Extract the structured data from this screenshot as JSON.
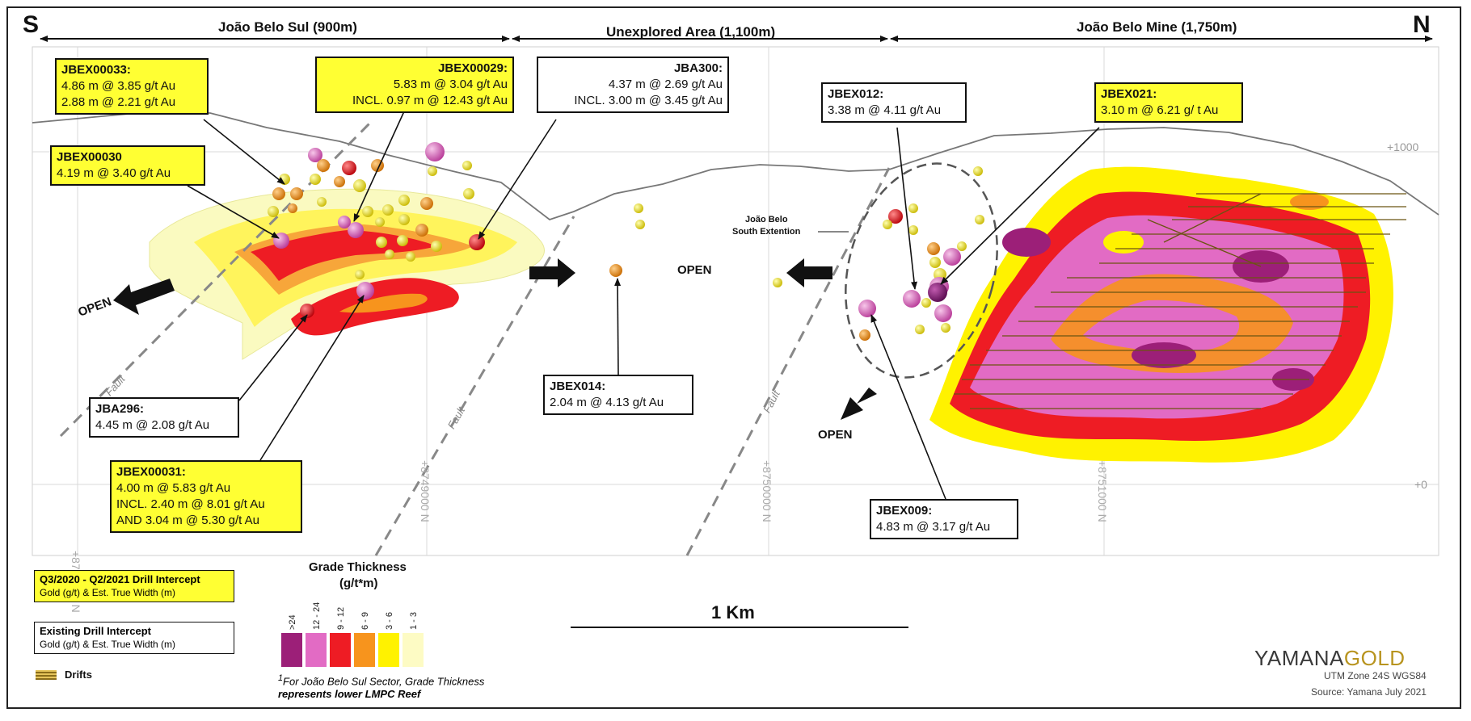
{
  "header": {
    "south": "S",
    "north": "N",
    "sectors": [
      {
        "label": "João Belo Sul (900m)"
      },
      {
        "label": "Unexplored Area (1,100m)"
      },
      {
        "label": "João Belo Mine (1,750m)"
      }
    ]
  },
  "elevations": [
    "+1000",
    "+0"
  ],
  "northings": [
    "+8748000 N",
    "+8749000 N",
    "+8750000 N",
    "+8751000 N"
  ],
  "map_labels": {
    "open": "OPEN",
    "fault": "Fault",
    "extension": "João Belo\nSouth Extention",
    "extension_line1": "João Belo",
    "extension_line2": "South Extention"
  },
  "callouts": {
    "jbex00033": {
      "title": "JBEX00033:",
      "lines": [
        "4.86 m @ 3.85 g/t Au",
        "2.88 m @ 2.21 g/t Au"
      ]
    },
    "jbex00029": {
      "title": "JBEX00029:",
      "lines": [
        "5.83 m @ 3.04 g/t Au",
        "INCL. 0.97 m @ 12.43 g/t Au"
      ]
    },
    "jba300": {
      "title": "JBA300:",
      "lines": [
        "4.37 m @ 2.69 g/t Au",
        "INCL. 3.00 m @ 3.45 g/t Au"
      ]
    },
    "jbex012": {
      "title": "JBEX012:",
      "lines": [
        "3.38 m @ 4.11 g/t Au"
      ]
    },
    "jbex021": {
      "title": "JBEX021:",
      "lines": [
        "3.10 m @ 6.21 g/ t Au"
      ]
    },
    "jbex00030": {
      "title": "JBEX00030",
      "lines": [
        "4.19 m @ 3.40 g/t Au"
      ]
    },
    "jba296": {
      "title": "JBA296:",
      "lines": [
        "4.45 m @ 2.08 g/t Au"
      ]
    },
    "jbex014": {
      "title": "JBEX014:",
      "lines": [
        "2.04 m @ 4.13 g/t Au"
      ]
    },
    "jbex00031": {
      "title": "JBEX00031:",
      "lines": [
        "4.00 m @ 5.83 g/t Au",
        "INCL. 2.40 m @ 8.01 g/t Au",
        "AND 3.04 m @ 5.30 g/t Au"
      ]
    },
    "jbex009": {
      "title": "JBEX009:",
      "lines": [
        "4.83 m @ 3.17 g/t Au"
      ]
    }
  },
  "legend": {
    "new_title": "Q3/2020 - Q2/2021 Drill Intercept",
    "new_sub": "Gold (g/t) & Est. True Width (m)",
    "old_title": "Existing Drill Intercept",
    "old_sub": "Gold (g/t) & Est. True Width (m)",
    "drifts": "Drifts",
    "grade_title": "Grade Thickness",
    "grade_unit": "(g/t*m)",
    "grades": [
      {
        "label": ">24",
        "color": "#9c1f78"
      },
      {
        "label": "12 - 24",
        "color": "#e26bc4"
      },
      {
        "label": "9 - 12",
        "color": "#ee1c24"
      },
      {
        "label": "6 - 9",
        "color": "#f7941d"
      },
      {
        "label": "3 - 6",
        "color": "#fff200"
      },
      {
        "label": "1 - 3",
        "color": "#fdfbc4"
      }
    ],
    "footnote_sup": "1",
    "footnote_line1": "For João Belo Sul Sector, Grade Thickness",
    "footnote_line2": "represents lower LMPC Reef"
  },
  "scale_bar": {
    "label": "1 Km"
  },
  "branding": {
    "logo": "YAMANAGOLD",
    "logo_a": "YAMANA",
    "logo_b": "GOLD",
    "zone": "UTM Zone 24S WGS84",
    "source": "Source: Yamana July 2021"
  }
}
